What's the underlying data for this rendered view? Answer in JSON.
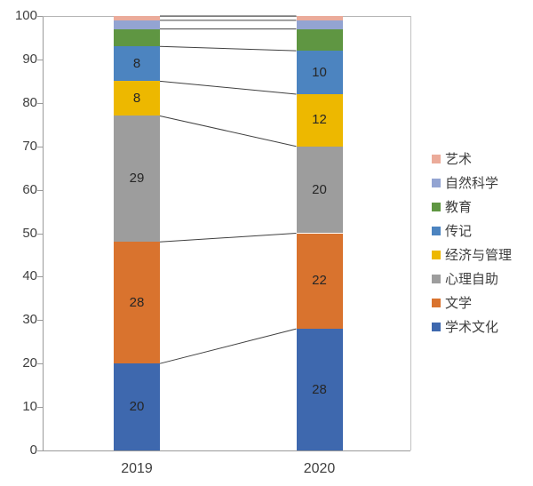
{
  "chart_data": {
    "type": "bar",
    "subtype": "stacked-column-100-with-series-lines",
    "title": "",
    "xlabel": "",
    "ylabel": "",
    "categories": [
      "2019",
      "2020"
    ],
    "series": [
      {
        "name": "学术文化",
        "color": "#3E68AE",
        "values": [
          20,
          28
        ]
      },
      {
        "name": "文学",
        "color": "#D9732E",
        "values": [
          28,
          22
        ]
      },
      {
        "name": "心理自助",
        "color": "#9D9D9D",
        "values": [
          29,
          20
        ]
      },
      {
        "name": "经济与管理",
        "color": "#EDB800",
        "values": [
          8,
          12
        ]
      },
      {
        "name": "传记",
        "color": "#4C84C0",
        "values": [
          8,
          10
        ]
      },
      {
        "name": "教育",
        "color": "#5F9642",
        "values": [
          4,
          5
        ]
      },
      {
        "name": "自然科学",
        "color": "#93A4D2",
        "values": [
          2,
          2
        ]
      },
      {
        "name": "艺术",
        "color": "#EBAB9A",
        "values": [
          1,
          1
        ]
      }
    ],
    "ylim": [
      0,
      100
    ],
    "ytick_labels": [
      "0",
      "10",
      "20",
      "30",
      "40",
      "50",
      "60",
      "70",
      "80",
      "90",
      "100"
    ],
    "ytick_values": [
      0,
      10,
      20,
      30,
      40,
      50,
      60,
      70,
      80,
      90,
      100
    ],
    "grid": false,
    "legend_position": "right",
    "legend_order": "top-of-stack-first",
    "series_lines": true,
    "data_label_min_value": 8,
    "connector_color": "#404040",
    "axis_color": "#9a9a9a",
    "plot_border_color": "#c2c2c2"
  }
}
